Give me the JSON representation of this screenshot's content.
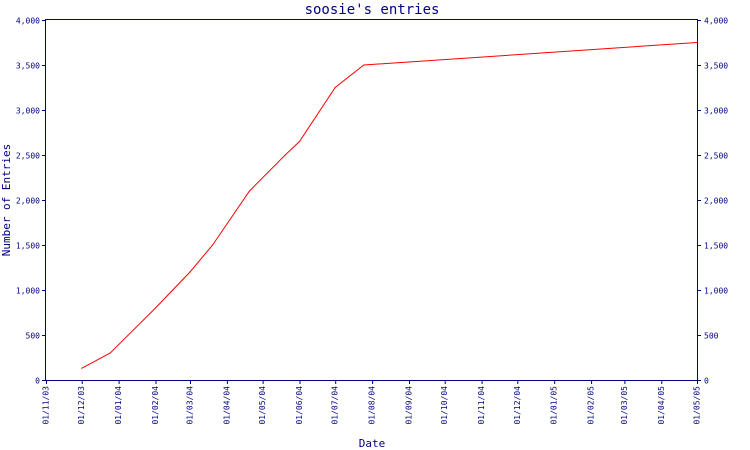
{
  "chart_data": {
    "type": "line",
    "title": "soosie's entries",
    "xlabel": "Date",
    "ylabel": "Number of Entries",
    "x_ticks": [
      "01/11/03",
      "01/12/03",
      "01/01/04",
      "01/02/04",
      "01/03/04",
      "01/04/04",
      "01/05/04",
      "01/06/04",
      "01/07/04",
      "01/08/04",
      "01/09/04",
      "01/10/04",
      "01/11/04",
      "01/12/04",
      "01/01/05",
      "01/02/05",
      "01/03/05",
      "01/04/05",
      "01/05/05"
    ],
    "y_ticks": [
      0,
      500,
      1000,
      1500,
      2000,
      2500,
      3000,
      3500,
      4000
    ],
    "y_tick_labels": [
      "0",
      "500",
      "1,000",
      "1,500",
      "2,000",
      "2,500",
      "3,000",
      "3,500",
      "4,000"
    ],
    "ylim": [
      0,
      4000
    ],
    "xlim": [
      "2003-11-01",
      "2005-05-01"
    ],
    "grid": false,
    "series": [
      {
        "color": "#ff0000",
        "points": [
          {
            "x": "2003-12-01",
            "y": 130
          },
          {
            "x": "2003-12-25",
            "y": 300
          },
          {
            "x": "2004-02-01",
            "y": 800
          },
          {
            "x": "2004-03-01",
            "y": 1200
          },
          {
            "x": "2004-03-20",
            "y": 1500
          },
          {
            "x": "2004-04-20",
            "y": 2100
          },
          {
            "x": "2004-05-20",
            "y": 2500
          },
          {
            "x": "2004-06-01",
            "y": 2650
          },
          {
            "x": "2004-07-01",
            "y": 3250
          },
          {
            "x": "2004-07-25",
            "y": 3500
          },
          {
            "x": "2005-05-01",
            "y": 3750
          }
        ]
      }
    ]
  },
  "colors": {
    "axis": "#000080",
    "line": "#ff0000",
    "background": "#ffffff"
  }
}
